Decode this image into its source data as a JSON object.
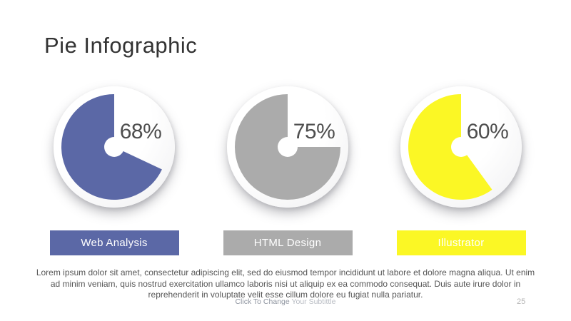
{
  "slide": {
    "title": "Pie Infographic",
    "body_text": "Lorem ipsum dolor sit amet, consectetur adipiscing elit, sed do eiusmod tempor incididunt ut labore et dolore magna aliqua. Ut enim\nad minim veniam, quis nostrud exercitation ullamco laboris nisi ut aliquip ex ea commodo consequat. Duis aute irure dolor in\nreprehenderit in voluptate velit esse cillum dolore eu fugiat nulla pariatur.",
    "footer_primary": "Click To Change",
    "footer_secondary": "Your Subtittle",
    "page_number": "25"
  },
  "chart_data": {
    "type": "pie",
    "title": "Pie Infographic",
    "fill_direction": "counterclockwise-from-top",
    "hole_radius_ratio": 0.095,
    "plate_color": "#ffffff",
    "value_text_color": "#4e4e4e",
    "charts": [
      {
        "label": "Web Analysis",
        "value_pct": 68,
        "display": "68%",
        "color": "#5b68a6"
      },
      {
        "label": "HTML Design",
        "value_pct": 75,
        "display": "75%",
        "color": "#ababab"
      },
      {
        "label": "Illustrator",
        "value_pct": 60,
        "display": "60%",
        "color": "#fbf725"
      }
    ]
  }
}
